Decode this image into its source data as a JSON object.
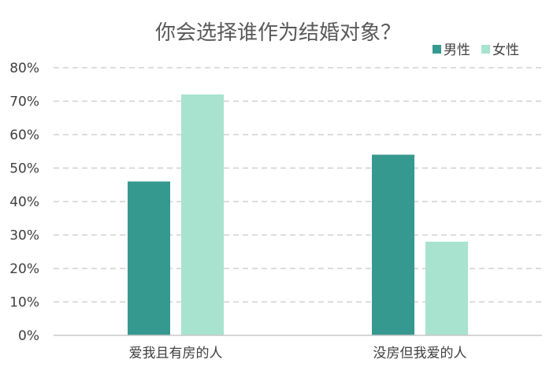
{
  "chart_data": {
    "type": "bar",
    "title": "你会选择谁作为结婚对象？",
    "xlabel": "",
    "ylabel": "",
    "categories": [
      "爱我且有房的人",
      "没房但我爱的人"
    ],
    "series": [
      {
        "name": "男性",
        "values": [
          0.46,
          0.54
        ],
        "color": "#36998f"
      },
      {
        "name": "女性",
        "values": [
          0.72,
          0.28
        ],
        "color": "#a8e3cf"
      }
    ],
    "ylim": [
      0,
      0.8
    ],
    "yticks": [
      0,
      0.1,
      0.2,
      0.3,
      0.4,
      0.5,
      0.6,
      0.7,
      0.8
    ],
    "ytick_labels": [
      "0%",
      "10%",
      "20%",
      "30%",
      "40%",
      "50%",
      "60%",
      "70%",
      "80%"
    ],
    "grid": true,
    "grid_style": "dashed",
    "legend_position": "top-right"
  }
}
